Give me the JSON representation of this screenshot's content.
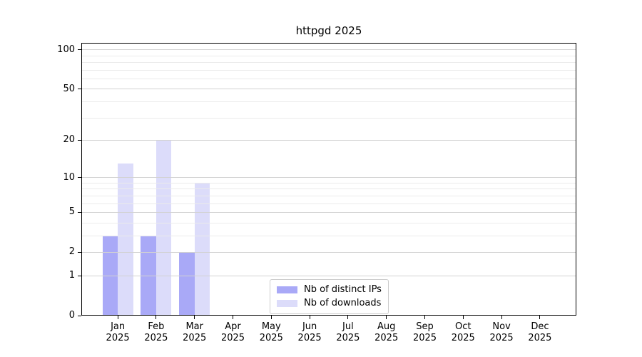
{
  "title": "httpgd 2025",
  "colors": {
    "ips_bar": "#a9a9f7",
    "downloads_bar": "#dcdcfa",
    "grid_major": "#d2d2d2",
    "grid_minor": "#ebebeb",
    "axis": "#000000",
    "legend_border": "#cccccc",
    "background": "#ffffff"
  },
  "chart_data": {
    "type": "bar",
    "title": "httpgd 2025",
    "categories": [
      "Jan",
      "Feb",
      "Mar",
      "Apr",
      "May",
      "Jun",
      "Jul",
      "Aug",
      "Sep",
      "Oct",
      "Nov",
      "Dec"
    ],
    "year_label": "2025",
    "series": [
      {
        "name": "Nb of distinct IPs",
        "color": "#a9a9f7",
        "values": [
          3,
          3,
          2,
          0,
          0,
          0,
          0,
          0,
          0,
          0,
          0,
          0
        ]
      },
      {
        "name": "Nb of downloads",
        "color": "#dcdcfa",
        "values": [
          13,
          20,
          9,
          0,
          0,
          0,
          0,
          0,
          0,
          0,
          0,
          0
        ]
      }
    ],
    "yscale": "log1p",
    "y_major_ticks": [
      0,
      1,
      2,
      5,
      10,
      20,
      50,
      100
    ],
    "y_minor_gridlines": [
      3,
      4,
      6,
      7,
      8,
      9,
      30,
      40,
      60,
      70,
      80,
      90
    ],
    "ylim": [
      0,
      113
    ],
    "xlim": [
      -0.95,
      11.95
    ],
    "bar_width": 0.4,
    "bar_offsets": [
      -0.4,
      0
    ],
    "grid": true,
    "legend_position": "lower center",
    "xlabel": "",
    "ylabel": ""
  }
}
